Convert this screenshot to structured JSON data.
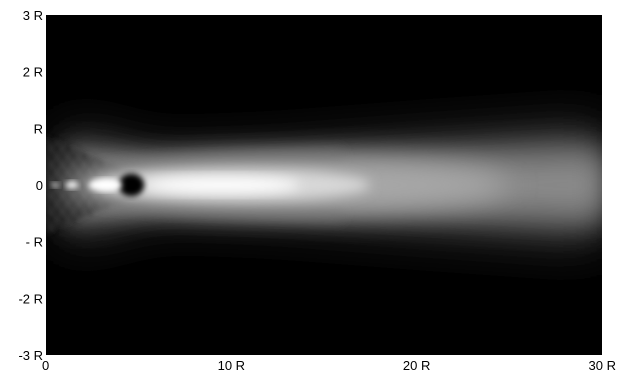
{
  "chart_data": {
    "type": "heatmap",
    "title": "",
    "xlabel": "",
    "ylabel": "",
    "xlim": [
      0,
      30
    ],
    "ylim": [
      -3,
      3
    ],
    "x_ticks": [
      {
        "value": 0,
        "label": "0"
      },
      {
        "value": 10,
        "label": "10 R"
      },
      {
        "value": 20,
        "label": "20 R"
      },
      {
        "value": 30,
        "label": "30 R"
      }
    ],
    "y_ticks": [
      {
        "value": 3,
        "label": "3 R"
      },
      {
        "value": 2,
        "label": "2 R"
      },
      {
        "value": 1,
        "label": "R"
      },
      {
        "value": 0,
        "label": "0"
      },
      {
        "value": -1,
        "label": "- R"
      },
      {
        "value": -2,
        "label": "-2 R"
      },
      {
        "value": -3,
        "label": "-3 R"
      }
    ],
    "colormap": "grayscale",
    "background_color": "#000000",
    "grid": false,
    "legend": "none"
  }
}
